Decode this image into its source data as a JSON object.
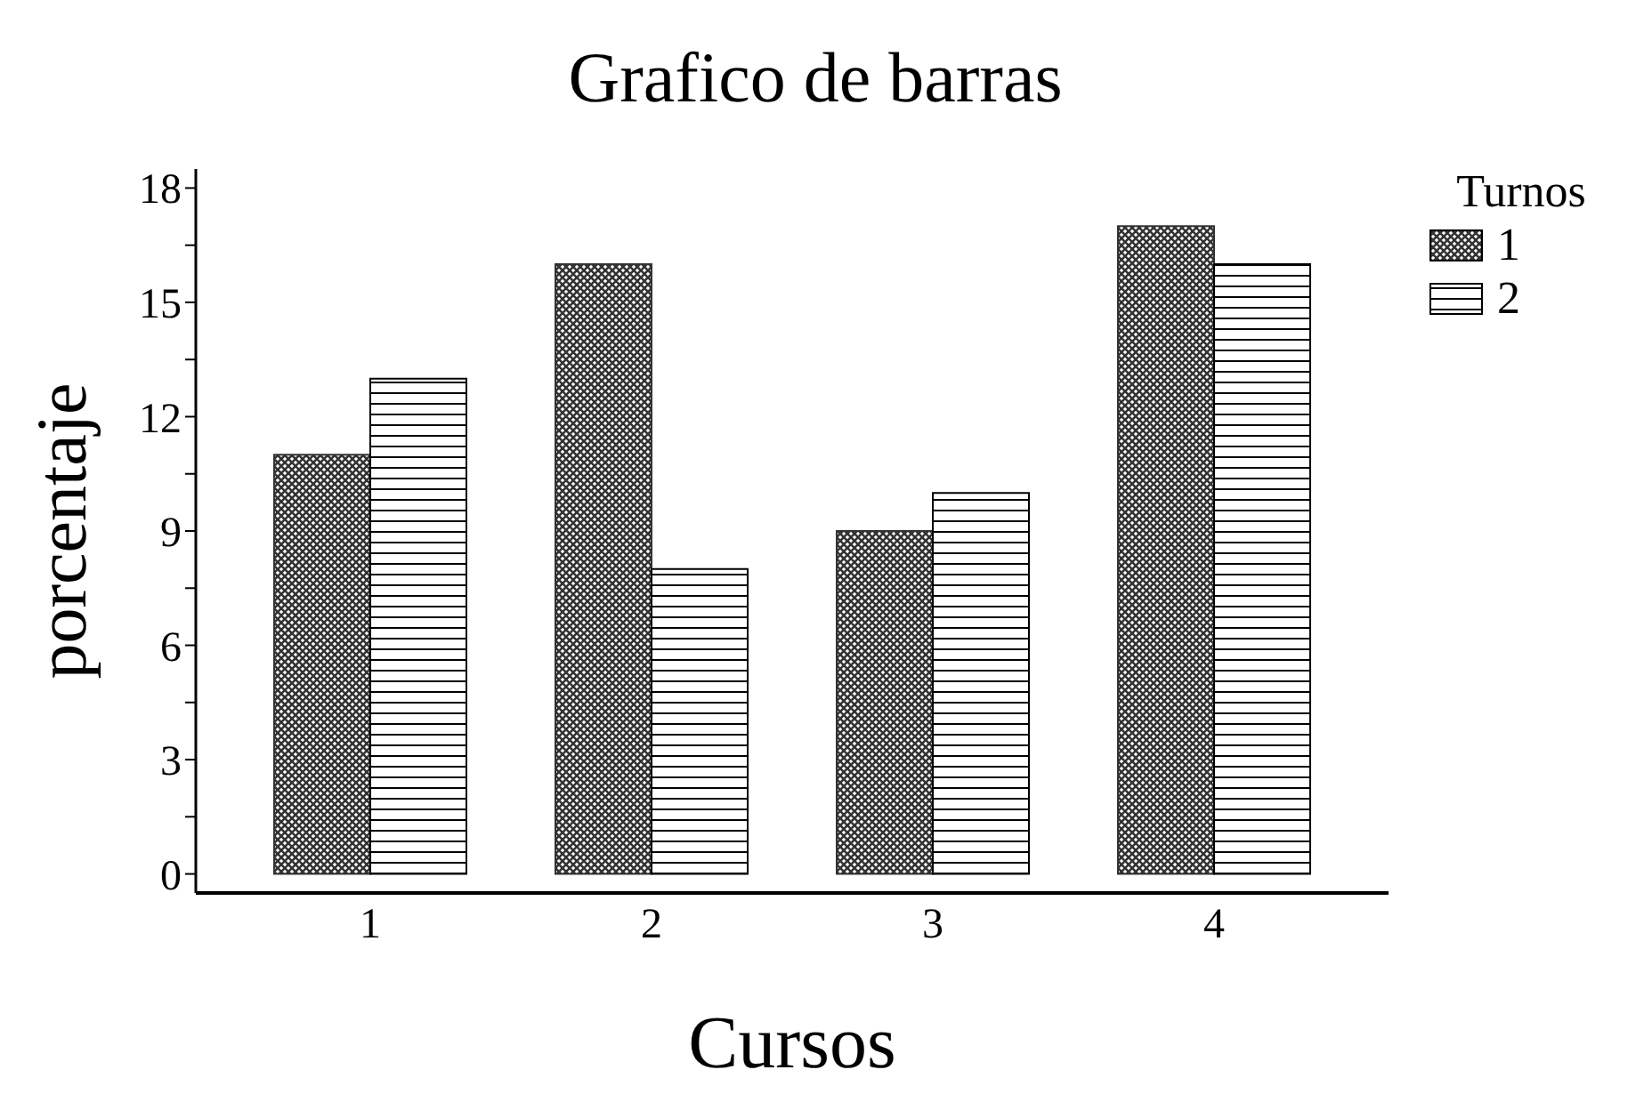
{
  "chart_data": {
    "type": "bar",
    "title": "Grafico de barras",
    "xlabel": "Cursos",
    "ylabel": "porcentaje",
    "legend_title": "Turnos",
    "categories": [
      "1",
      "2",
      "3",
      "4"
    ],
    "series": [
      {
        "name": "1",
        "color": "#333333",
        "values": [
          11,
          16,
          9,
          17
        ]
      },
      {
        "name": "2",
        "color": "#000000",
        "values": [
          13,
          8,
          10,
          16
        ]
      }
    ],
    "ylim": [
      -0.5,
      18.5
    ],
    "yticks": [
      0,
      {
        "value": 1.5,
        "label": null
      },
      3,
      {
        "value": 4.5,
        "label": null
      },
      6,
      {
        "value": 7.5,
        "label": null
      },
      9,
      {
        "value": 10.5,
        "label": null
      },
      12,
      {
        "value": 13.5,
        "label": null
      },
      15,
      {
        "value": 16.5,
        "label": null
      },
      18
    ],
    "grid": false,
    "legend": "top right"
  }
}
